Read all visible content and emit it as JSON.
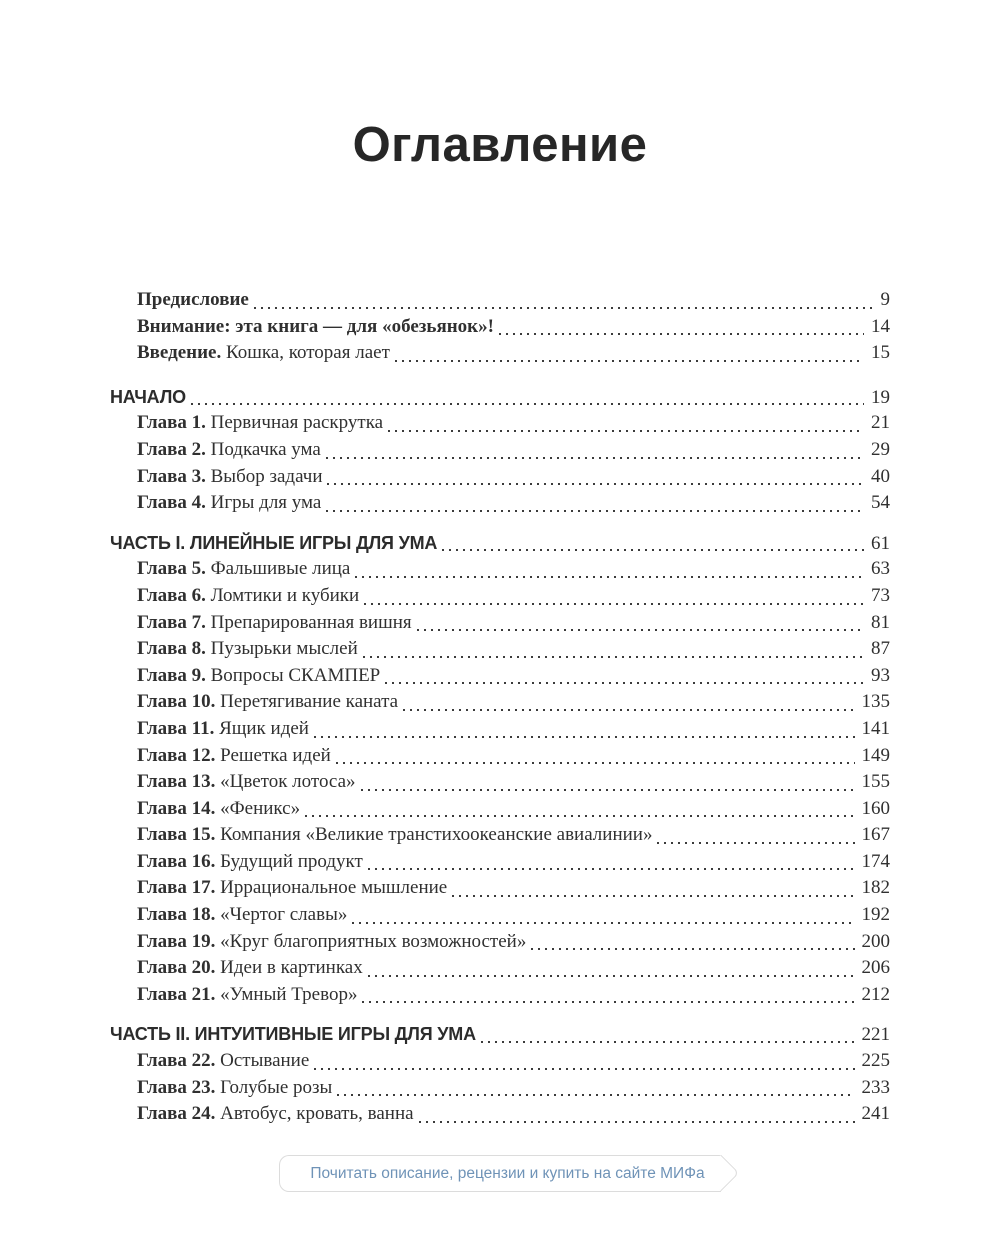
{
  "page": {
    "title": "Оглавление"
  },
  "colors": {
    "text": "#303030",
    "leader_dots": "#3b3b3b",
    "link_blue": "#6f93b7",
    "button_border": "#dcdcdc",
    "background": "#ffffff"
  },
  "toc": {
    "groups": [
      {
        "header": null,
        "entries": [
          {
            "bold": "Предисловие",
            "text": "",
            "page": "9"
          },
          {
            "bold": "Внимание: эта книга — для «обезьянок»!",
            "text": "",
            "page": "14"
          },
          {
            "bold": "Введение.",
            "text": " Кошка, которая лает",
            "page": "15"
          }
        ]
      },
      {
        "header": {
          "label": "НАЧАЛО",
          "page": "19"
        },
        "entries": [
          {
            "bold": "Глава 1.",
            "text": " Первичная раскрутка",
            "page": "21"
          },
          {
            "bold": "Глава 2.",
            "text": " Подкачка ума",
            "page": "29"
          },
          {
            "bold": "Глава 3.",
            "text": " Выбор задачи",
            "page": "40"
          },
          {
            "bold": "Глава 4.",
            "text": " Игры для ума",
            "page": "54"
          }
        ]
      },
      {
        "header": {
          "label": "ЧАСТЬ I. ЛИНЕЙНЫЕ ИГРЫ ДЛЯ УМА",
          "page": "61"
        },
        "entries": [
          {
            "bold": "Глава 5.",
            "text": " Фальшивые лица",
            "page": "63"
          },
          {
            "bold": "Глава 6.",
            "text": " Ломтики и кубики",
            "page": "73"
          },
          {
            "bold": "Глава 7.",
            "text": " Препарированная вишня",
            "page": "81"
          },
          {
            "bold": "Глава 8.",
            "text": " Пузырьки мыслей",
            "page": "87"
          },
          {
            "bold": "Глава 9.",
            "text": " Вопросы СКАМПЕР",
            "page": "93"
          },
          {
            "bold": "Глава 10.",
            "text": " Перетягивание каната",
            "page": "135"
          },
          {
            "bold": "Глава 11.",
            "text": " Ящик идей",
            "page": "141"
          },
          {
            "bold": "Глава 12.",
            "text": " Решетка идей",
            "page": "149"
          },
          {
            "bold": "Глава 13.",
            "text": " «Цветок лотоса»",
            "page": "155"
          },
          {
            "bold": "Глава 14.",
            "text": " «Феникс»",
            "page": "160"
          },
          {
            "bold": "Глава 15.",
            "text": " Компания «Великие транстихоокеанские авиалинии»",
            "page": "167"
          },
          {
            "bold": "Глава 16.",
            "text": " Будущий продукт",
            "page": "174"
          },
          {
            "bold": "Глава 17.",
            "text": " Иррациональное мышление",
            "page": "182"
          },
          {
            "bold": "Глава 18.",
            "text": " «Чертог славы»",
            "page": "192"
          },
          {
            "bold": "Глава 19.",
            "text": " «Круг благоприятных возможностей»",
            "page": "200"
          },
          {
            "bold": "Глава 20.",
            "text": " Идеи в картинках",
            "page": "206"
          },
          {
            "bold": "Глава 21.",
            "text": " «Умный Тревор»",
            "page": "212"
          }
        ]
      },
      {
        "header": {
          "label": "ЧАСТЬ II. ИНТУИТИВНЫЕ ИГРЫ ДЛЯ УМА",
          "page": "221"
        },
        "entries": [
          {
            "bold": "Глава 22.",
            "text": " Остывание",
            "page": "225"
          },
          {
            "bold": "Глава 23.",
            "text": " Голубые розы",
            "page": "233"
          },
          {
            "bold": "Глава 24.",
            "text": " Автобус, кровать, ванна",
            "page": "241"
          }
        ]
      }
    ]
  },
  "footer": {
    "cta_label": "Почитать описание, рецензии и купить на сайте МИФа"
  }
}
